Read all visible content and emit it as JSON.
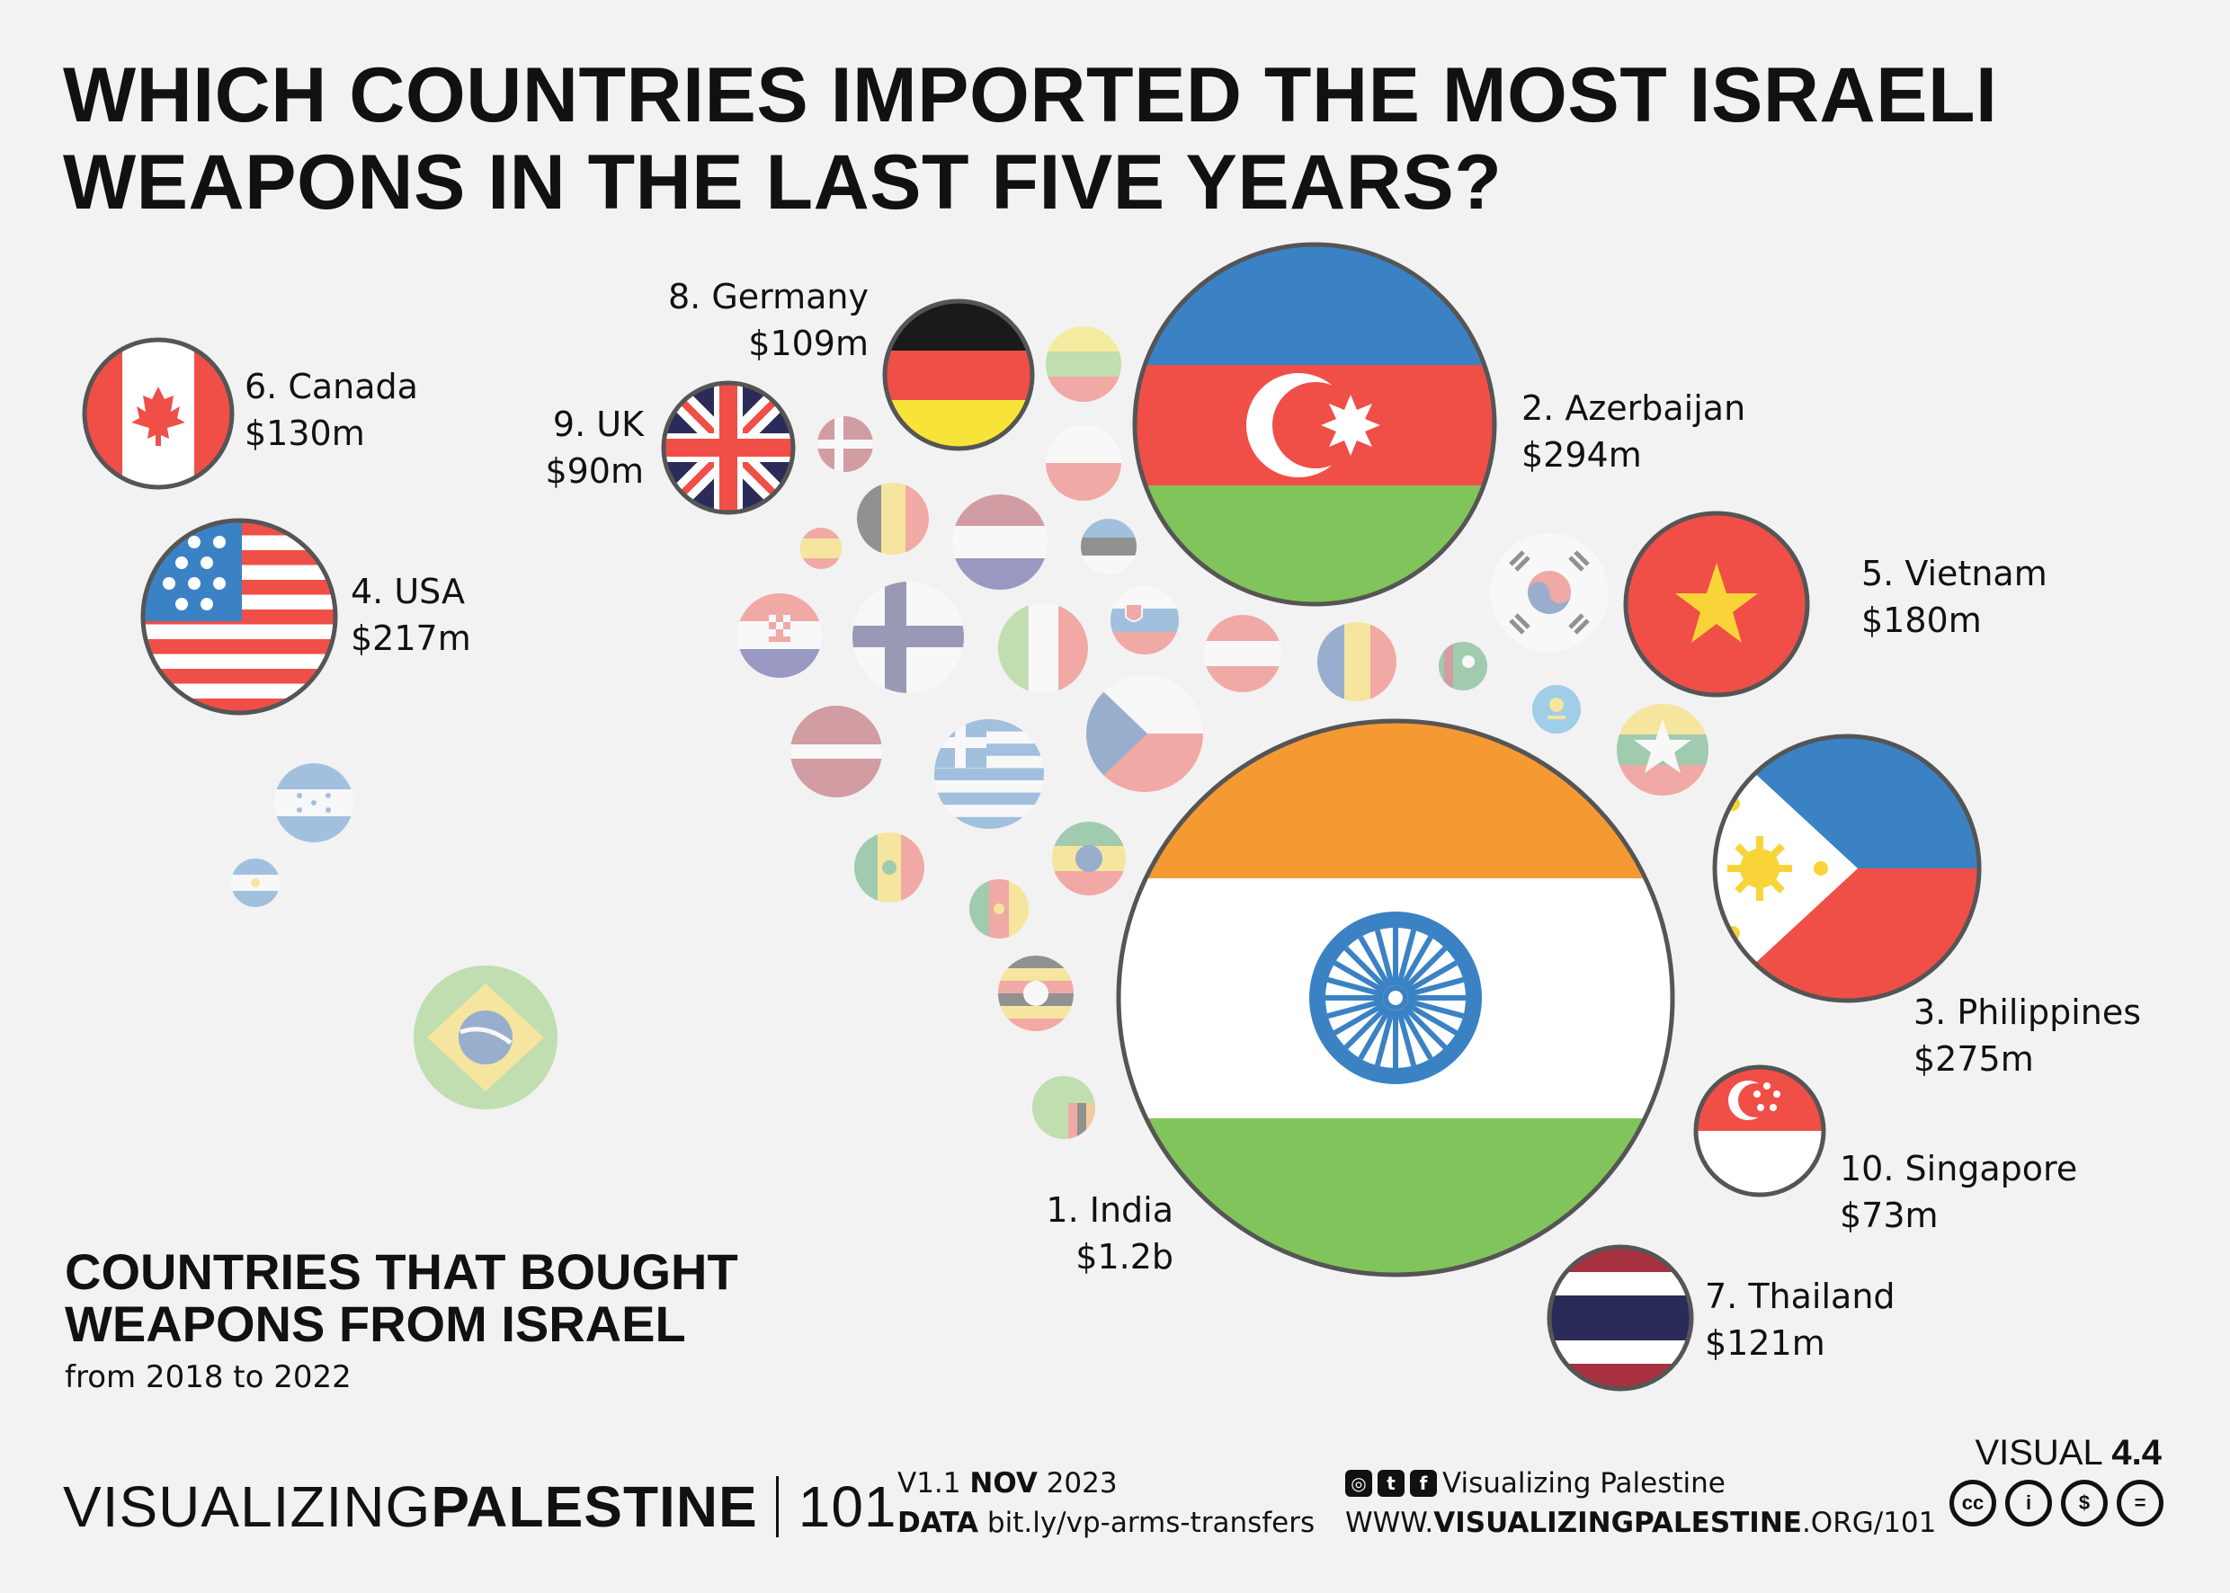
{
  "title": {
    "line1": "WHICH COUNTRIES IMPORTED THE MOST ISRAELI",
    "line2": "WEAPONS IN THE LAST FIVE YEARS?"
  },
  "subtitle": {
    "line1": "COUNTRIES THAT BOUGHT",
    "line2": "WEAPONS FROM ISRAEL",
    "daterange": "from 2018 to 2022"
  },
  "chart_data": {
    "type": "bubble",
    "unit": "USD",
    "series": [
      {
        "rank": 1,
        "country": "India",
        "value_label": "$1.2b",
        "value_musd": 1200
      },
      {
        "rank": 2,
        "country": "Azerbaijan",
        "value_label": "$294m",
        "value_musd": 294
      },
      {
        "rank": 3,
        "country": "Philippines",
        "value_label": "$275m",
        "value_musd": 275
      },
      {
        "rank": 4,
        "country": "USA",
        "value_label": "$217m",
        "value_musd": 217
      },
      {
        "rank": 5,
        "country": "Vietnam",
        "value_label": "$180m",
        "value_musd": 180
      },
      {
        "rank": 6,
        "country": "Canada",
        "value_label": "$130m",
        "value_musd": 130
      },
      {
        "rank": 7,
        "country": "Thailand",
        "value_label": "$121m",
        "value_musd": 121
      },
      {
        "rank": 8,
        "country": "Germany",
        "value_label": "$109m",
        "value_musd": 109
      },
      {
        "rank": 9,
        "country": "UK",
        "value_label": "$90m",
        "value_musd": 90
      },
      {
        "rank": 10,
        "country": "Singapore",
        "value_label": "$73m",
        "value_musd": 73
      }
    ],
    "unlabeled_flags": [
      "Honduras",
      "El Salvador",
      "Brazil",
      "Lithuania",
      "Denmark",
      "Poland",
      "Belgium",
      "Netherlands",
      "Estonia",
      "Spain",
      "Croatia",
      "Finland",
      "Italy",
      "Slovakia",
      "Austria",
      "Romania",
      "Turkmenistan",
      "South Korea",
      "Kazakhstan",
      "Latvia",
      "Greece",
      "Czech Republic",
      "Myanmar",
      "Senegal",
      "Ethiopia",
      "Cameroon",
      "Uganda",
      "Zambia"
    ]
  },
  "footer": {
    "brand_light": "VISUALIZING",
    "brand_bold": "PALESTINE",
    "brand_num": "101",
    "version": "V1.1",
    "month": "NOV",
    "year": "2023",
    "data_label": "DATA",
    "data_link": "bit.ly/vp-arms-transfers",
    "social_name": "Visualizing Palestine",
    "url_pre": "WWW.",
    "url_bold": "VISUALIZINGPALESTINE",
    "url_post": ".ORG/101",
    "visual_label": "VISUAL",
    "visual_num": "4.4"
  },
  "colors": {
    "background": "#f2f2f2",
    "outline": "#555555",
    "red": "#ef4f47",
    "blue": "#3b82c4",
    "green": "#82c45c",
    "orange": "#f59a33",
    "navy": "#2b2b5a"
  }
}
